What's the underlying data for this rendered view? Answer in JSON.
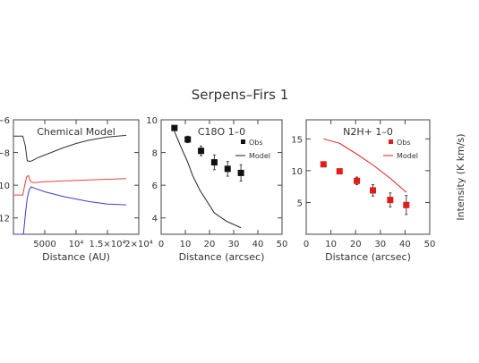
{
  "figure_title": "Serpens–Firs 1",
  "chart_data": [
    {
      "type": "line",
      "title": "Chemical Model",
      "xlabel": "Distance (AU)",
      "ylabel": "",
      "xlim": [
        0,
        20000
      ],
      "ylim": [
        -13,
        -6
      ],
      "xticks": [
        {
          "value": 5000,
          "label": "5000"
        },
        {
          "value": 10000,
          "label": "10⁴"
        },
        {
          "value": 15000,
          "label": "1.5×10⁴"
        },
        {
          "value": 20000,
          "label": "2×10⁴"
        }
      ],
      "yticks": [
        {
          "value": -6,
          "label": "−6"
        },
        {
          "value": -8,
          "label": "−8"
        },
        {
          "value": -10,
          "label": "−10"
        },
        {
          "value": -12,
          "label": "−12"
        }
      ],
      "series": [
        {
          "color": "#333333",
          "x": [
            0,
            1500,
            1900,
            2200,
            2600,
            3000,
            4000,
            6000,
            8000,
            10000,
            12000,
            15000,
            18000
          ],
          "y": [
            -7.0,
            -7.0,
            -7.6,
            -8.5,
            -8.55,
            -8.5,
            -8.3,
            -8.0,
            -7.7,
            -7.45,
            -7.25,
            -7.05,
            -6.95
          ]
        },
        {
          "color": "#e8453c",
          "x": [
            0,
            1500,
            1800,
            2100,
            2400,
            2700,
            3200,
            4500,
            7000,
            10000,
            14000,
            18000
          ],
          "y": [
            -10.6,
            -10.6,
            -10.0,
            -9.5,
            -9.4,
            -9.75,
            -9.85,
            -9.8,
            -9.75,
            -9.7,
            -9.65,
            -9.6
          ]
        },
        {
          "color": "#3b3bd6",
          "x": [
            0,
            1600,
            1900,
            2200,
            2500,
            2800,
            3500,
            5000,
            8000,
            12000,
            15000,
            18000
          ],
          "y": [
            -13.0,
            -13.0,
            -11.8,
            -10.8,
            -10.3,
            -10.1,
            -10.2,
            -10.4,
            -10.7,
            -11.0,
            -11.15,
            -11.2
          ]
        }
      ]
    },
    {
      "type": "scatter",
      "title": "C18O 1–0",
      "xlabel": "Distance (arcsec)",
      "ylabel": "",
      "xlim": [
        0,
        50
      ],
      "ylim": [
        3,
        10
      ],
      "xticks": [
        0,
        10,
        20,
        30,
        40,
        50
      ],
      "yticks": [
        4,
        6,
        8,
        10
      ],
      "legend": {
        "position": "top-right",
        "entries": [
          {
            "label": "Obs",
            "kind": "marker"
          },
          {
            "label": "Model",
            "kind": "line"
          }
        ]
      },
      "obs": {
        "color": "#111111",
        "x": [
          5.5,
          11,
          16.5,
          22,
          27.5,
          33
        ],
        "y": [
          9.5,
          8.8,
          8.1,
          7.4,
          7.0,
          6.75
        ],
        "err": [
          0.1,
          0.2,
          0.3,
          0.45,
          0.45,
          0.5
        ]
      },
      "model": {
        "color": "#222222",
        "x": [
          5.5,
          8,
          11,
          13,
          16,
          19,
          22,
          27,
          33
        ],
        "y": [
          9.3,
          8.4,
          7.4,
          6.6,
          5.7,
          5.0,
          4.3,
          3.8,
          3.4
        ]
      }
    },
    {
      "type": "scatter",
      "title": "N2H+ 1–0",
      "xlabel": "Distance (arcsec)",
      "ylabel": "Intensity (K km/s)",
      "xlim": [
        0,
        50
      ],
      "ylim": [
        0,
        18
      ],
      "xticks": [
        0,
        10,
        20,
        30,
        40,
        50
      ],
      "yticks": [
        5,
        10,
        15
      ],
      "legend": {
        "position": "top-right",
        "entries": [
          {
            "label": "Obs",
            "kind": "marker"
          },
          {
            "label": "Model",
            "kind": "line"
          }
        ]
      },
      "obs": {
        "color": "#e01c1c",
        "x": [
          7,
          13.5,
          20.5,
          27,
          34,
          40.5
        ],
        "y": [
          11.0,
          9.9,
          8.4,
          6.9,
          5.4,
          4.6
        ],
        "err": [
          0.3,
          0.3,
          0.6,
          0.9,
          1.1,
          1.5
        ]
      },
      "model": {
        "color": "#e01c1c",
        "x": [
          7,
          13.5,
          20.5,
          27,
          34,
          40.5
        ],
        "y": [
          15.0,
          14.3,
          12.6,
          10.9,
          8.8,
          6.6
        ]
      }
    }
  ]
}
